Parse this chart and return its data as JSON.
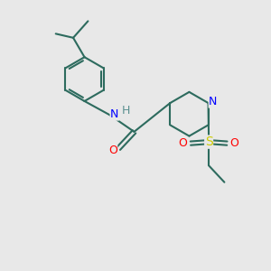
{
  "background_color": "#e8e8e8",
  "bond_color": "#2d6b5e",
  "bond_width": 1.5,
  "atom_colors": {
    "N": "#0000ff",
    "O": "#ff0000",
    "S": "#cccc00",
    "H": "#5a9090"
  },
  "font_size": 9,
  "fig_size": [
    3.0,
    3.0
  ],
  "dpi": 100
}
